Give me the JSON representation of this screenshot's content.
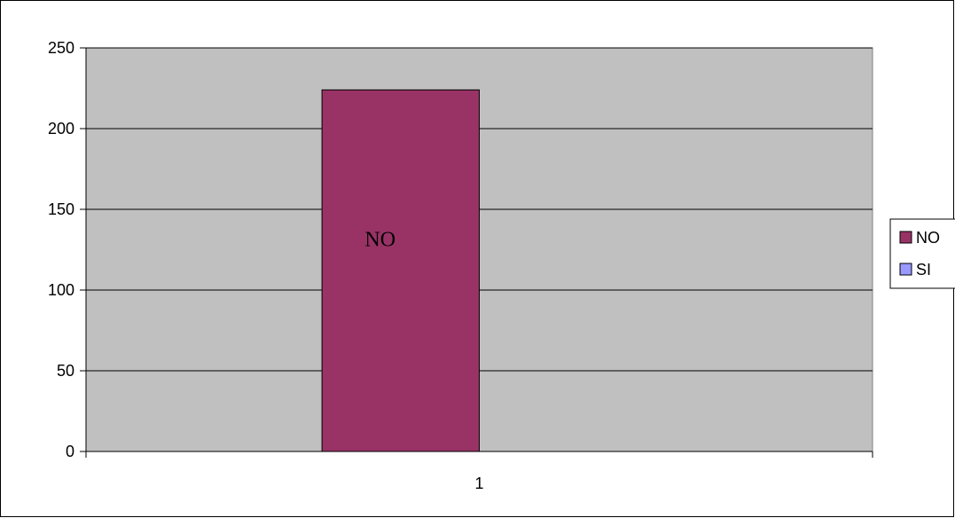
{
  "chart_data": {
    "type": "bar",
    "categories": [
      "1"
    ],
    "series": [
      {
        "name": "NO",
        "values": [
          224
        ],
        "color": "#993366"
      },
      {
        "name": "SI",
        "values": [
          0
        ],
        "color": "#9999FF"
      }
    ],
    "data_labels": [
      {
        "series": "NO",
        "category": "1",
        "text": "NO"
      }
    ],
    "title": "",
    "xlabel": "",
    "ylabel": "",
    "ylim": [
      0,
      250
    ],
    "yticks": [
      0,
      50,
      100,
      150,
      200,
      250
    ],
    "grid": true,
    "legend": "right",
    "plot_background": "#C0C0C0"
  }
}
